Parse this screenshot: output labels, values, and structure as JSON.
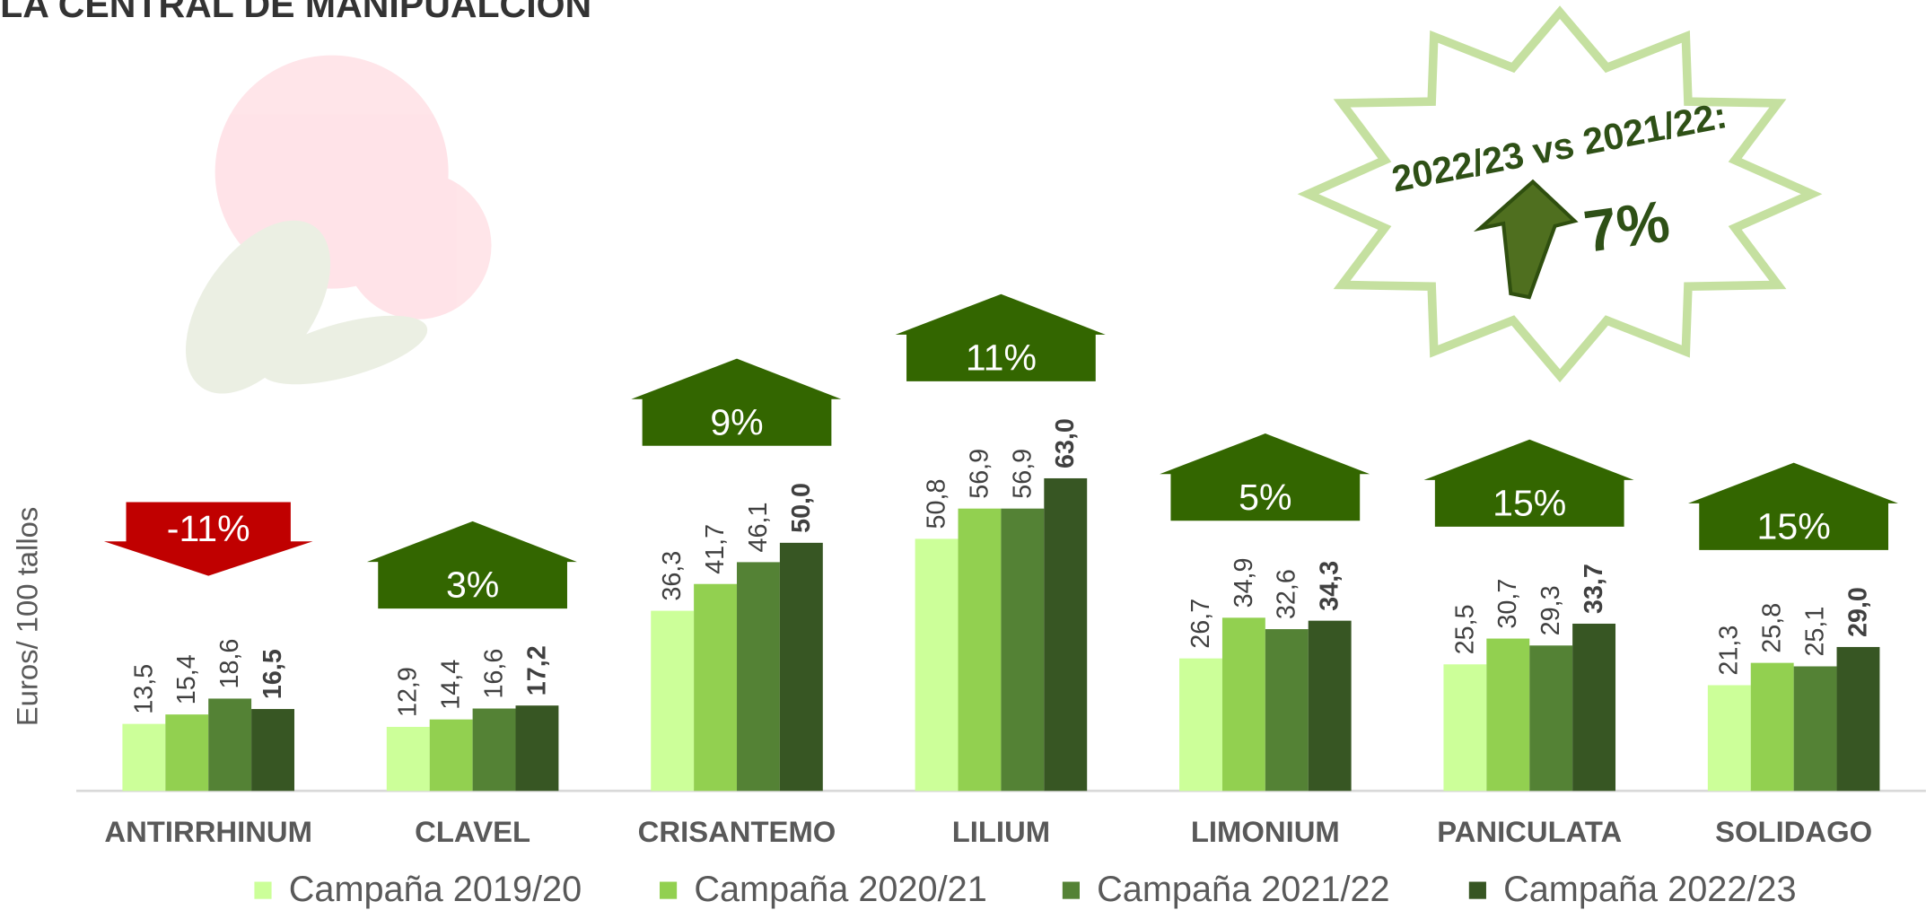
{
  "chart_data": {
    "type": "bar",
    "title": "LA CENTRAL DE MANIPUALCION",
    "y_label": "Euros/ 100 tallos",
    "categories": [
      "ANTIRRHINUM",
      "CLAVEL",
      "CRISANTEMO",
      "LILIUM",
      "LIMONIUM",
      "PANICULATA",
      "SOLIDAGO"
    ],
    "series": [
      {
        "name": "Campaña 2019/20",
        "color": "#ccff99",
        "values": [
          13.5,
          12.9,
          36.3,
          50.8,
          26.7,
          25.5,
          21.3
        ],
        "value_labels": [
          "13,5",
          "12,9",
          "36,3",
          "50,8",
          "26,7",
          "25,5",
          "21,3"
        ]
      },
      {
        "name": "Campaña 2020/21",
        "color": "#92d050",
        "values": [
          15.4,
          14.4,
          41.7,
          56.9,
          34.9,
          30.7,
          25.8
        ],
        "value_labels": [
          "15,4",
          "14,4",
          "41,7",
          "56,9",
          "34,9",
          "30,7",
          "25,8"
        ]
      },
      {
        "name": "Campaña 2021/22",
        "color": "#548235",
        "values": [
          18.6,
          16.6,
          46.1,
          56.9,
          32.6,
          29.3,
          25.1
        ],
        "value_labels": [
          "18,6",
          "16,6",
          "46,1",
          "56,9",
          "32,6",
          "29,3",
          "25,1"
        ]
      },
      {
        "name": "Campaña 2022/23",
        "color": "#375623",
        "values": [
          16.5,
          17.2,
          50.0,
          63.0,
          34.3,
          33.7,
          29.0
        ],
        "value_labels": [
          "16,5",
          "17,2",
          "50,0",
          "63,0",
          "34,3",
          "33,7",
          "29,0"
        ]
      }
    ],
    "changes": [
      -11,
      3,
      9,
      11,
      5,
      15,
      15
    ],
    "change_labels": [
      "-11%",
      "3%",
      "9%",
      "11%",
      "5%",
      "15%",
      "15%"
    ],
    "up_color": "#336600",
    "down_color": "#c00000",
    "star_title": "2022/23 vs 2021/22:",
    "star_value": "7%",
    "ylim": [
      0,
      100
    ]
  }
}
